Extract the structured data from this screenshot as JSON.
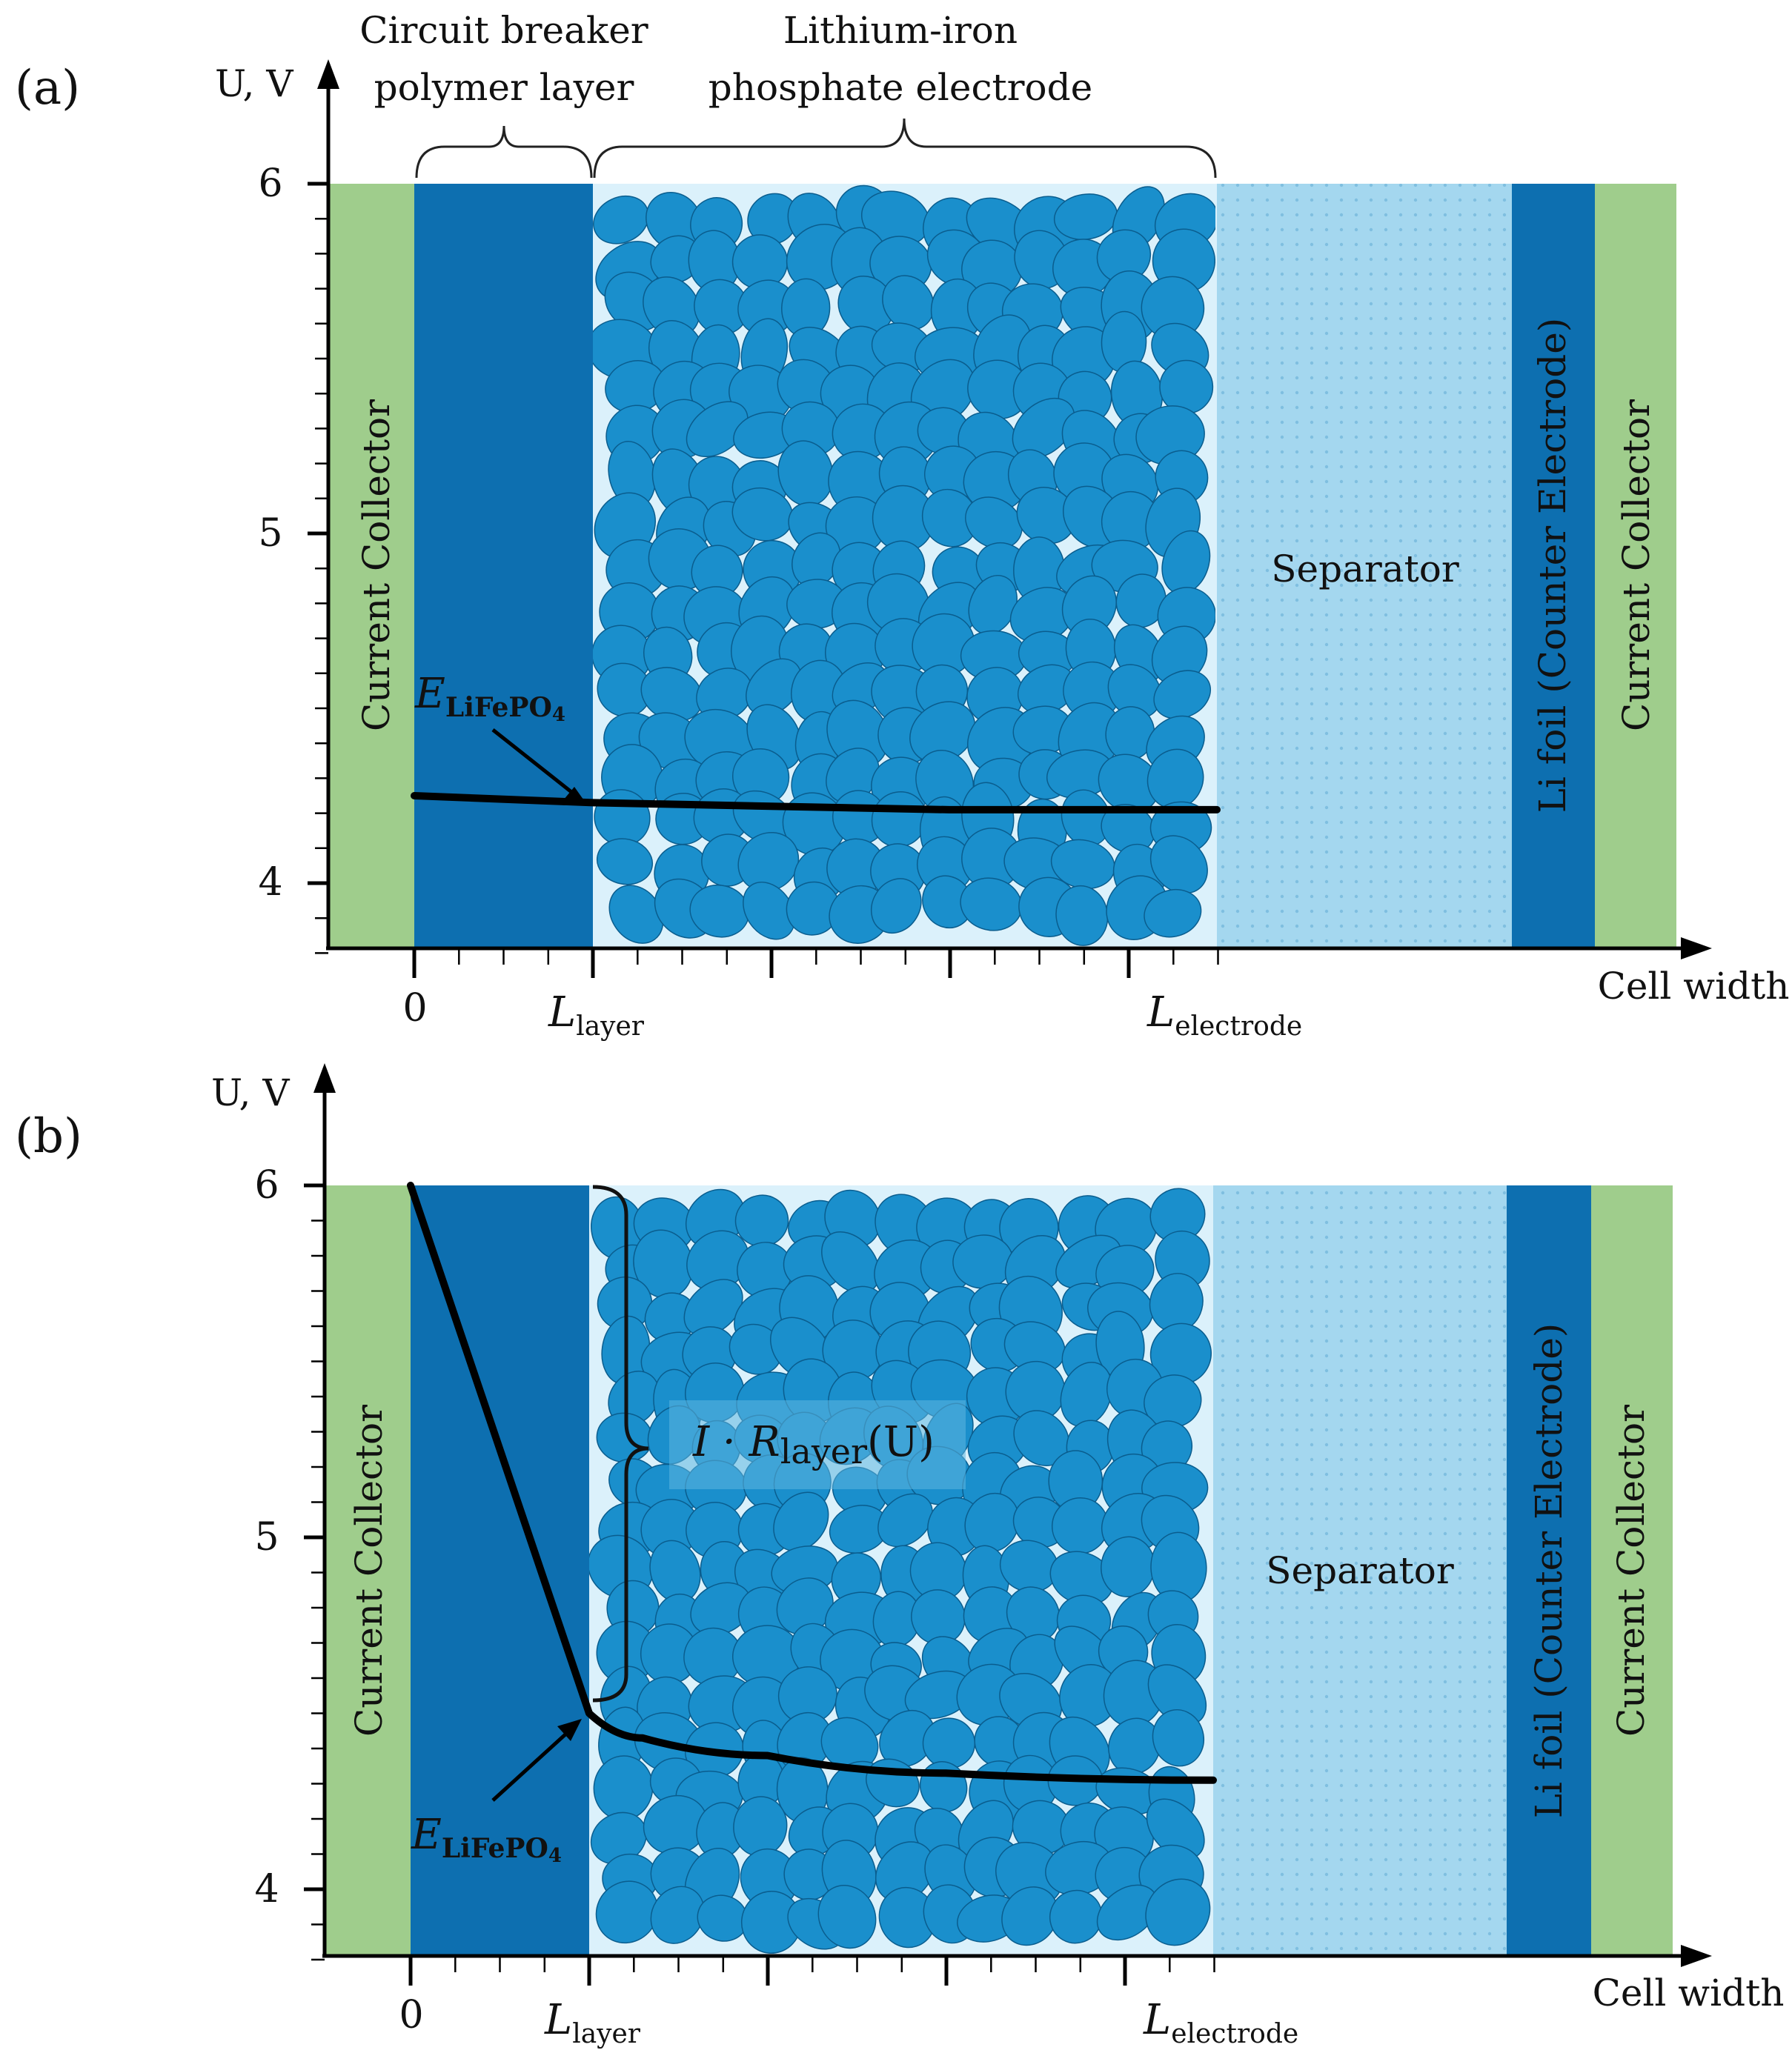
{
  "colors": {
    "current_collector": "#9fcd8c",
    "polymer_layer": "#0d6fb0",
    "electrode_bg": "#dbf1fb",
    "particle": "#1a8fcc",
    "particle_edge": "#0a5d8e",
    "separator": "#a4d7ef",
    "li_foil": "#0d6fb0",
    "curve": "#000000"
  },
  "annotations": {
    "layer_brace": "Circuit breaker polymer layer",
    "layer_brace_line1": "Circuit breaker",
    "layer_brace_line2": "polymer layer",
    "electrode_brace_line1": "Lithium-iron",
    "electrode_brace_line2": "phosphate electrode"
  },
  "panels": [
    {
      "label": "(a)",
      "ylabel": "U, V",
      "xlabel": "Cell width",
      "yticks": [
        "6",
        "5",
        "4"
      ],
      "xticks": {
        "zero": "0",
        "layer": "L",
        "layer_sub": "layer",
        "electrode": "L",
        "electrode_sub": "electrode"
      },
      "regions": {
        "left_collector": "Current Collector",
        "separator": "Separator",
        "li_foil": "Li foil (Counter Electrode)",
        "right_collector": "Current Collector"
      },
      "curve_label": {
        "main": "E",
        "sub": "LiFePO",
        "sub2": "4"
      },
      "curve": [
        [
          0,
          4.25
        ],
        [
          1,
          4.23
        ],
        [
          2,
          4.22
        ],
        [
          3,
          4.21
        ],
        [
          4.5,
          4.21
        ]
      ],
      "extra_label": ""
    },
    {
      "label": "(b)",
      "ylabel": "U, V",
      "xlabel": "Cell width",
      "yticks": [
        "6",
        "5",
        "4"
      ],
      "xticks": {
        "zero": "0",
        "layer": "L",
        "layer_sub": "layer",
        "electrode": "L",
        "electrode_sub": "electrode"
      },
      "regions": {
        "left_collector": "Current Collector",
        "separator": "Separator",
        "li_foil": "Li foil (Counter Electrode)",
        "right_collector": "Current Collector"
      },
      "curve_label": {
        "main": "E",
        "sub": "LiFePO",
        "sub2": "4"
      },
      "curve": [
        [
          0,
          6.0
        ],
        [
          1,
          4.5
        ],
        [
          1.3,
          4.43
        ],
        [
          2,
          4.38
        ],
        [
          3,
          4.33
        ],
        [
          4.5,
          4.31
        ]
      ],
      "extra_label": {
        "prefix": "I · R",
        "sub": "layer",
        "suffix": "(U)"
      }
    }
  ]
}
